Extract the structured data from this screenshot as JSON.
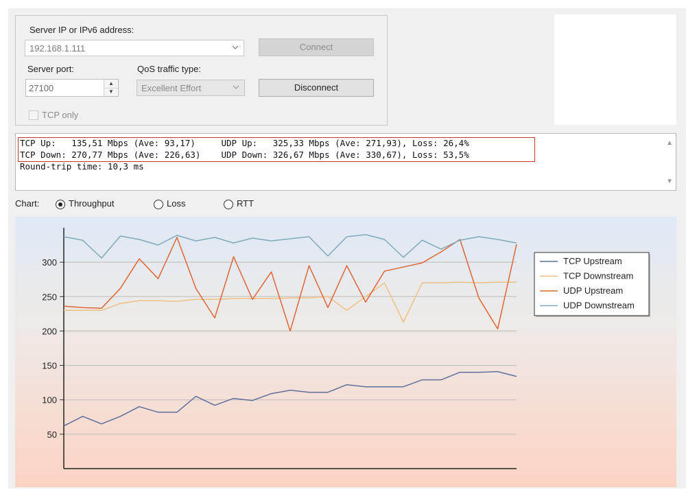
{
  "connection": {
    "server_label": "Server IP or IPv6  address:",
    "server_value": "192.168.1.111",
    "port_label": "Server port:",
    "port_value": "27100",
    "qos_label": "QoS traffic type:",
    "qos_value": "Excellent Effort",
    "connect_label": "Connect",
    "disconnect_label": "Disconnect",
    "tcp_only_label": "TCP only"
  },
  "stats": {
    "line1": "TCP Up:   135,51 Mbps (Ave: 93,17)     UDP Up:   325,33 Mbps (Ave: 271,93), Loss: 26,4%",
    "line2": "TCP Down: 270,77 Mbps (Ave: 226,63)    UDP Down: 326,67 Mbps (Ave: 330,67), Loss: 53,5%",
    "line3": "Round-trip time: 10,3 ms",
    "scroll_up": "▲",
    "scroll_down": "▼"
  },
  "chart_options": {
    "label": "Chart:",
    "options": [
      "Throughput",
      "Loss",
      "RTT"
    ],
    "selected": "Throughput"
  },
  "chart_data": {
    "type": "line",
    "yticks": [
      50,
      100,
      150,
      200,
      250,
      300
    ],
    "ylim": [
      0,
      350
    ],
    "grid": true,
    "legend_position": "right",
    "colors": {
      "TCP Upstream": "#5f6f99",
      "TCP Downstream": "#efc07f",
      "UDP Upstream": "#e06535",
      "UDP Downstream": "#7fa9b9"
    },
    "series": [
      {
        "name": "TCP Upstream",
        "values": [
          62,
          76,
          65,
          76,
          90,
          82,
          82,
          105,
          92,
          102,
          99,
          109,
          114,
          111,
          111,
          122,
          119,
          119,
          119,
          129,
          129,
          140,
          140,
          141,
          134
        ]
      },
      {
        "name": "TCP Downstream",
        "values": [
          230,
          230,
          230,
          240,
          244,
          244,
          243,
          246,
          246,
          247,
          247,
          247,
          248,
          248,
          250,
          230,
          250,
          270,
          213,
          270,
          270,
          271,
          270,
          271,
          271
        ]
      },
      {
        "name": "UDP Upstream",
        "values": [
          236,
          234,
          233,
          262,
          305,
          276,
          336,
          262,
          219,
          308,
          246,
          286,
          200,
          295,
          234,
          295,
          242,
          287,
          293,
          299,
          315,
          333,
          248,
          203,
          326
        ]
      },
      {
        "name": "UDP Downstream",
        "values": [
          337,
          332,
          306,
          338,
          333,
          325,
          339,
          331,
          336,
          328,
          335,
          331,
          334,
          337,
          309,
          337,
          340,
          333,
          307,
          332,
          319,
          332,
          337,
          333,
          328
        ]
      }
    ]
  }
}
